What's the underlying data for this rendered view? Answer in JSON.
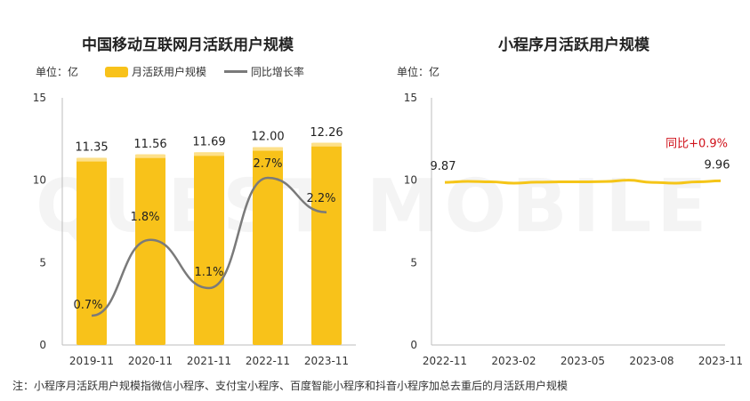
{
  "watermark": "QUEST MOBILE",
  "note": "注：小程序月活跃用户规模指微信小程序、支付宝小程序、百度智能小程序和抖音小程序加总去重后的月活跃用户规模",
  "colors": {
    "bar": "#f8c21a",
    "bar_light": "#fde08a",
    "line_gray": "#7a7a7a",
    "line_yellow": "#f5c518",
    "highlight_red": "#d0121b",
    "grid": "#d9d9d9"
  },
  "chart_data": [
    {
      "type": "bar",
      "title": "中国移动互联网月活跃用户规模",
      "unit_label": "单位：亿",
      "categories": [
        "2019-11",
        "2020-11",
        "2021-11",
        "2022-11",
        "2023-11"
      ],
      "ylim": [
        0,
        15
      ],
      "yticks": [
        "0",
        "5",
        "10",
        "15"
      ],
      "series": [
        {
          "name": "月活跃用户规模",
          "type": "bar",
          "values": [
            11.35,
            11.56,
            11.69,
            12.0,
            12.26
          ],
          "labels": [
            "11.35",
            "11.56",
            "11.69",
            "12.00",
            "12.26"
          ]
        },
        {
          "name": "同比增长率",
          "type": "line",
          "values": [
            0.7,
            1.8,
            1.1,
            2.7,
            2.2
          ],
          "labels": [
            "0.7%",
            "1.8%",
            "1.1%",
            "2.7%",
            "2.2%"
          ]
        }
      ],
      "legend": "top"
    },
    {
      "type": "line",
      "title": "小程序月活跃用户规模",
      "unit_label": "单位：亿",
      "x_ticks": [
        "2022-11",
        "2023-02",
        "2023-05",
        "2023-08",
        "2023-11"
      ],
      "x": [
        "2022-11",
        "2022-12",
        "2023-01",
        "2023-02",
        "2023-03",
        "2023-04",
        "2023-05",
        "2023-06",
        "2023-07",
        "2023-08",
        "2023-09",
        "2023-10",
        "2023-11"
      ],
      "values": [
        9.87,
        9.93,
        9.9,
        9.82,
        9.88,
        9.9,
        9.9,
        9.92,
        10.0,
        9.87,
        9.82,
        9.9,
        9.96
      ],
      "ylim": [
        0,
        15
      ],
      "yticks": [
        "0",
        "5",
        "10",
        "15"
      ],
      "start_label": "9.87",
      "end_label": "9.96",
      "annotation": "同比+0.9%"
    }
  ]
}
